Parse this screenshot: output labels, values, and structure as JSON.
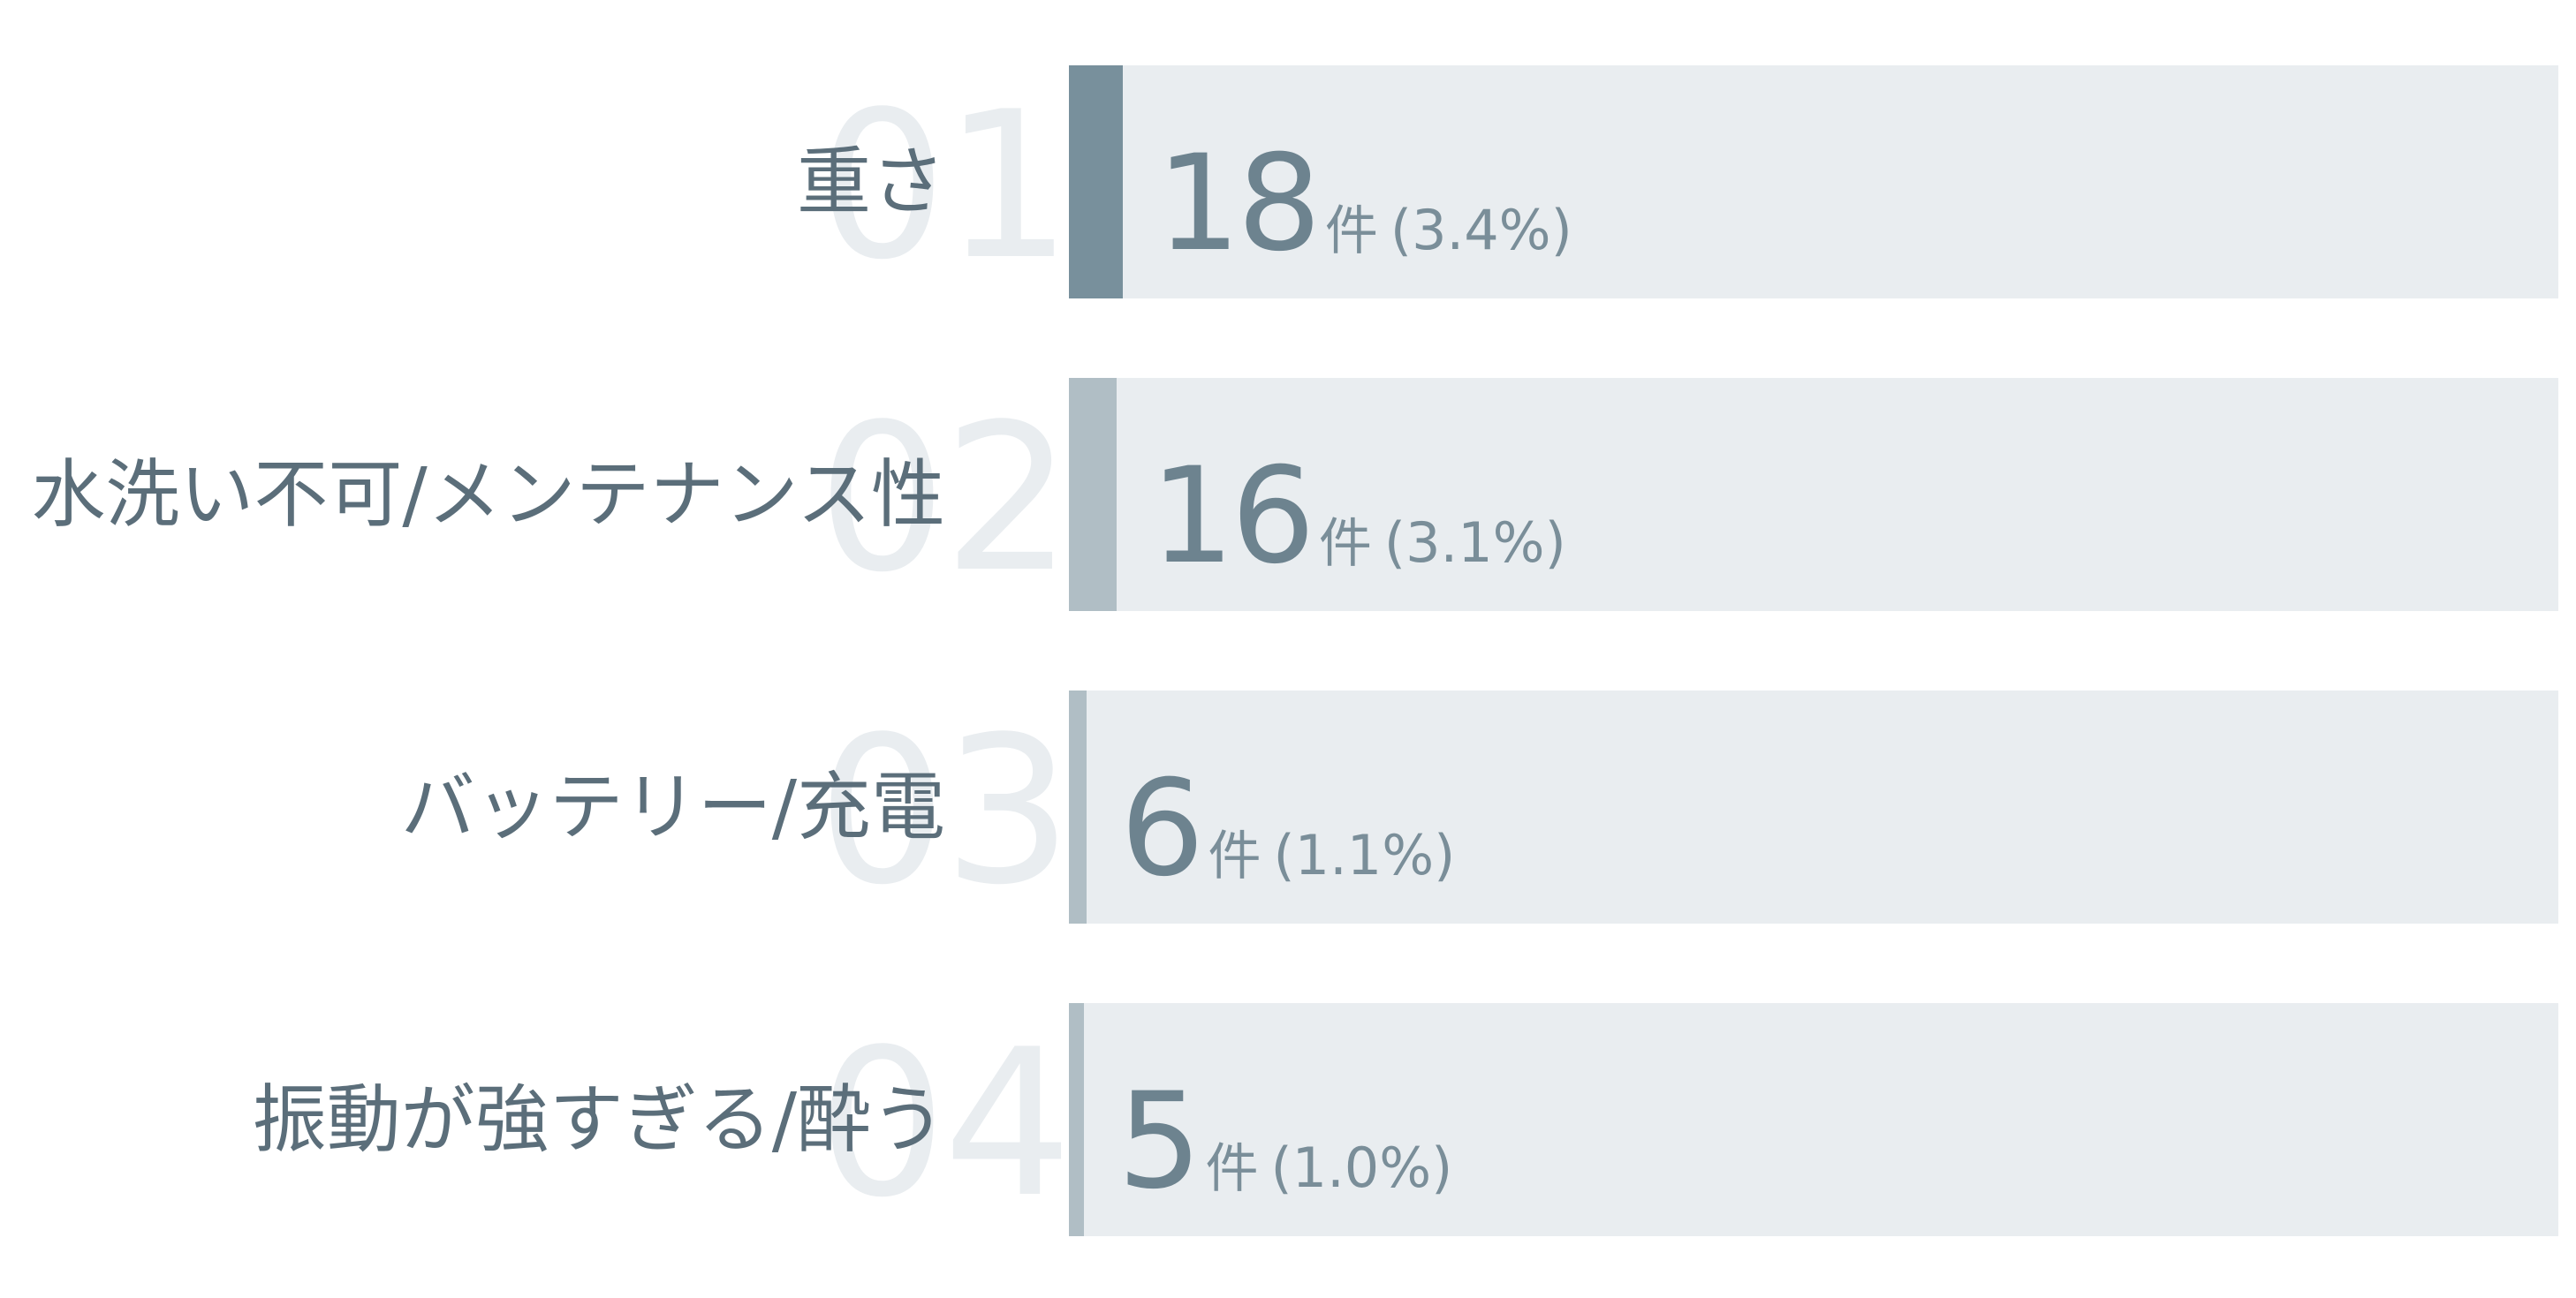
{
  "chart_data": {
    "type": "bar",
    "orientation": "horizontal",
    "bar_max": 500,
    "categories": [
      "重さ",
      "水洗い不可/メンテナンス性",
      "バッテリー/充電",
      "振動が強すぎる/酔う"
    ],
    "items": [
      {
        "rank": "01",
        "label": "重さ",
        "value": 18,
        "count_text": "18",
        "unit": "件",
        "percent": 3.4,
        "percent_text": "(3.4%)",
        "color": "#78909c"
      },
      {
        "rank": "02",
        "label": "水洗い不可/メンテナンス性",
        "value": 16,
        "count_text": "16",
        "unit": "件",
        "percent": 3.1,
        "percent_text": "(3.1%)",
        "color": "#b0bec5"
      },
      {
        "rank": "03",
        "label": "バッテリー/充電",
        "value": 6,
        "count_text": "6",
        "unit": "件",
        "percent": 1.1,
        "percent_text": "(1.1%)",
        "color": "#b0bec5"
      },
      {
        "rank": "04",
        "label": "振動が強すぎる/酔う",
        "value": 5,
        "count_text": "5",
        "unit": "件",
        "percent": 1.0,
        "percent_text": "(1.0%)",
        "color": "#b0bec5"
      }
    ],
    "colors": {
      "track": "#e9edf0",
      "top_bar": "#78909c",
      "other_bar": "#b0bec5",
      "label_text": "#5b6e7a",
      "value_text": "#6d838f"
    }
  }
}
